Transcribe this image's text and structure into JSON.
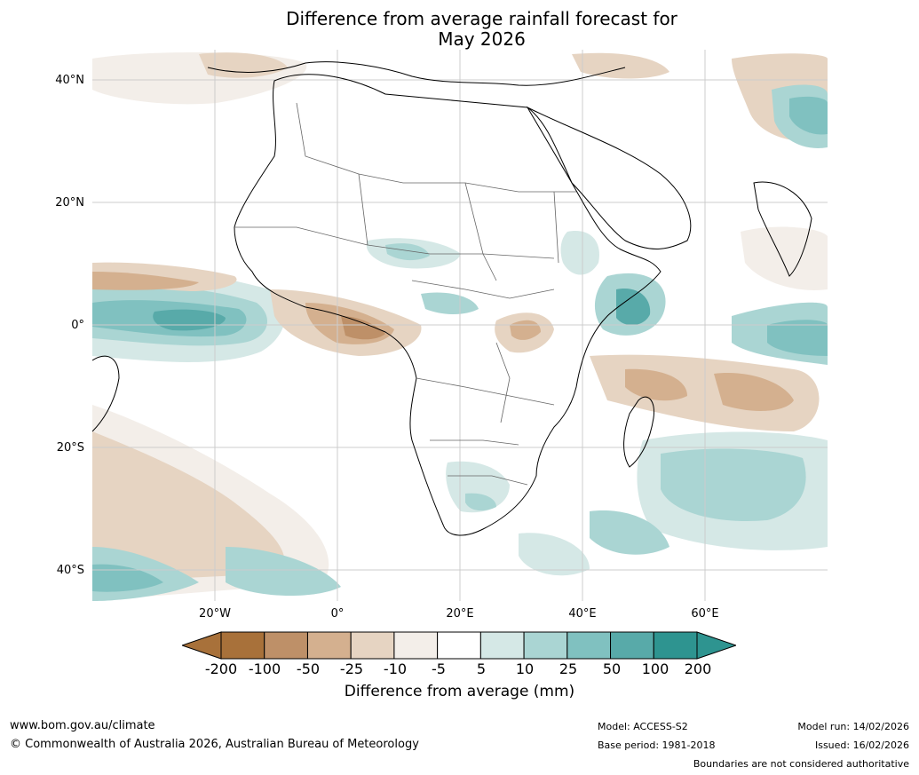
{
  "title": {
    "line1": "Difference from average rainfall forecast for",
    "line2": "May 2026"
  },
  "map": {
    "lat_labels": [
      "40°N",
      "20°N",
      "0°",
      "20°S",
      "40°S"
    ],
    "lon_labels": [
      "20°W",
      "0°",
      "20°E",
      "40°E",
      "60°E"
    ],
    "lat_range": [
      -45,
      45
    ],
    "lon_range": [
      -40,
      80
    ],
    "region": "Africa"
  },
  "legend": {
    "title": "Difference from average (mm)",
    "tick_labels": [
      "-200",
      "-100",
      "-50",
      "-25",
      "-10",
      "-5",
      "5",
      "10",
      "25",
      "50",
      "100",
      "200"
    ],
    "colors": [
      "#a8713a",
      "#be9068",
      "#d4b08f",
      "#e6d4c2",
      "#f3eee9",
      "#ffffff",
      "#d5e8e6",
      "#aad5d3",
      "#80c1c0",
      "#58aaa9",
      "#2e9490"
    ],
    "extend_low_color": "#a8713a",
    "extend_high_color": "#2e9490"
  },
  "footer": {
    "url": "www.bom.gov.au/climate",
    "copyright": "© Commonwealth of Australia 2026, Australian Bureau of Meteorology",
    "model": "Model: ACCESS-S2",
    "base_period": "Base period: 1981-2018",
    "model_run": "Model run: 14/02/2026",
    "issued": "Issued: 16/02/2026",
    "disclaimer": "Boundaries are not considered authoritative"
  }
}
